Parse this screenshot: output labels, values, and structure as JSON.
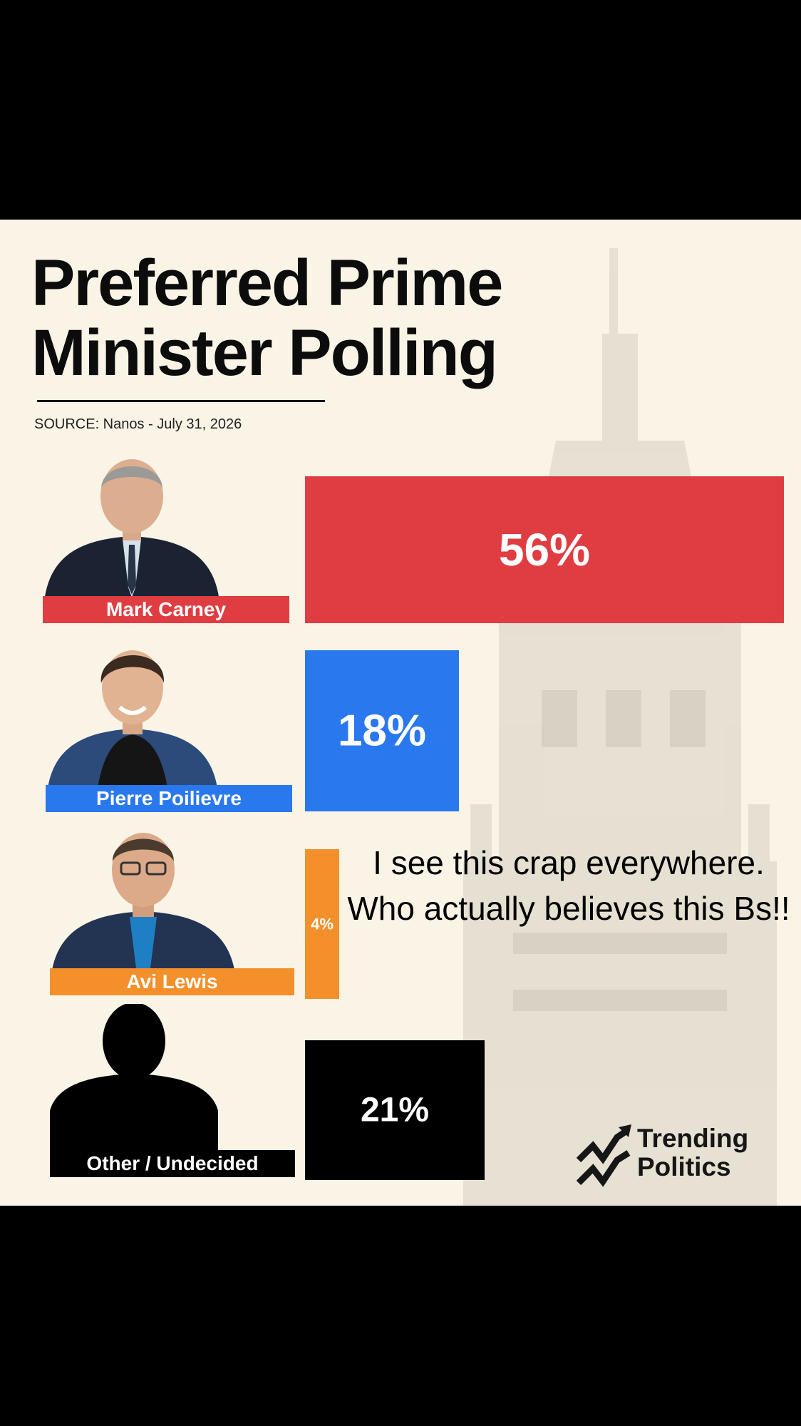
{
  "header": {
    "title_line1": "Preferred Prime",
    "title_line2": "Minister Polling",
    "source": "SOURCE: Nanos  - July 31, 2026"
  },
  "chart_data": {
    "type": "bar",
    "orientation": "horizontal",
    "title": "Preferred Prime Minister Polling",
    "categories": [
      "Mark Carney",
      "Pierre Poilievre",
      "Avi Lewis",
      "Other / Undecided"
    ],
    "values": [
      56,
      18,
      4,
      21
    ],
    "value_labels": [
      "56%",
      "18%",
      "4%",
      "21%"
    ],
    "colors": [
      "#df3d42",
      "#2a78ee",
      "#f3902b",
      "#000000"
    ],
    "unit": "%",
    "xlim": [
      0,
      56
    ],
    "grid": false,
    "legend": "none"
  },
  "overlay": {
    "comment": "I see this crap everywhere. Who actually believes this Bs!!"
  },
  "brand": {
    "line1": "Trending",
    "line2": "Politics"
  },
  "colors": {
    "card_background": "#f9f4e6",
    "letterbox": "#000000"
  }
}
